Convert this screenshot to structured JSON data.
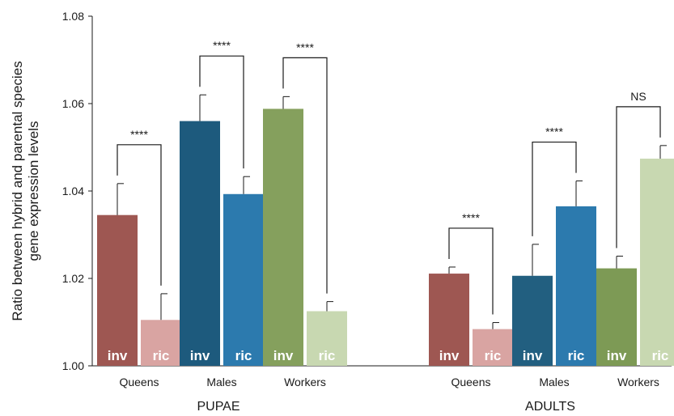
{
  "chart_data": {
    "type": "bar",
    "ylabel_lines": [
      "Ratio between hybrid and parental species",
      "gene expression levels"
    ],
    "ylim": [
      1.0,
      1.08
    ],
    "yticks": [
      "1.00",
      "1.02",
      "1.04",
      "1.06",
      "1.08"
    ],
    "grid": false,
    "groups": [
      {
        "name": "PUPAE",
        "categories": [
          {
            "name": "Queens",
            "bars": [
              {
                "label": "inv",
                "value": 1.0345,
                "error": 0.0072,
                "color": "#9e5752"
              },
              {
                "label": "ric",
                "value": 1.0105,
                "error": 0.006,
                "color": "#d9a4a2"
              }
            ],
            "significance": "****"
          },
          {
            "name": "Males",
            "bars": [
              {
                "label": "inv",
                "value": 1.056,
                "error": 0.006,
                "color": "#1d5a7d"
              },
              {
                "label": "ric",
                "value": 1.0393,
                "error": 0.004,
                "color": "#2c7aae"
              }
            ],
            "significance": "****"
          },
          {
            "name": "Workers",
            "bars": [
              {
                "label": "inv",
                "value": 1.0588,
                "error": 0.0028,
                "color": "#85a05d"
              },
              {
                "label": "ric",
                "value": 1.0125,
                "error": 0.0022,
                "color": "#c8d8b1"
              }
            ],
            "significance": "****"
          }
        ]
      },
      {
        "name": "ADULTS",
        "categories": [
          {
            "name": "Queens",
            "bars": [
              {
                "label": "inv",
                "value": 1.0211,
                "error": 0.0015,
                "color": "#9e5752"
              },
              {
                "label": "ric",
                "value": 1.0084,
                "error": 0.0015,
                "color": "#d9a4a2"
              }
            ],
            "significance": "****"
          },
          {
            "name": "Males",
            "bars": [
              {
                "label": "inv",
                "value": 1.0206,
                "error": 0.0072,
                "color": "#225f80"
              },
              {
                "label": "ric",
                "value": 1.0365,
                "error": 0.0058,
                "color": "#2c7aae"
              }
            ],
            "significance": "****"
          },
          {
            "name": "Workers",
            "bars": [
              {
                "label": "inv",
                "value": 1.0223,
                "error": 0.0028,
                "color": "#7d9a55"
              },
              {
                "label": "ric",
                "value": 1.0474,
                "error": 0.003,
                "color": "#c8d8b1"
              }
            ],
            "significance": "NS"
          }
        ]
      }
    ]
  }
}
